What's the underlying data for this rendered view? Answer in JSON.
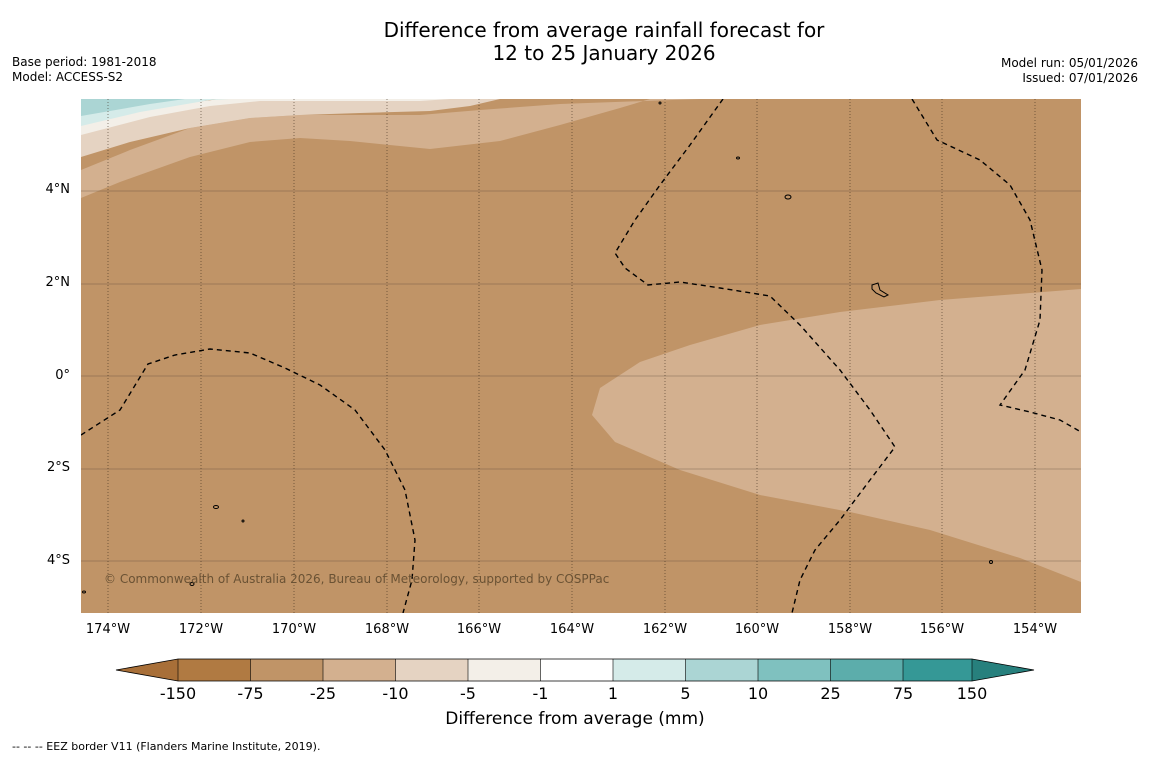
{
  "title_line1": "Difference from average rainfall forecast for",
  "title_line2": "12 to 25 January 2026",
  "base_period": "Base period: 1981-2018",
  "model": "Model: ACCESS-S2",
  "model_run": "Model run: 05/01/2026",
  "issued": "Issued: 07/01/2026",
  "lat_labels": [
    "4°N",
    "2°N",
    "0°",
    "2°S",
    "4°S"
  ],
  "lon_labels": [
    "174°W",
    "172°W",
    "170°W",
    "168°W",
    "166°W",
    "164°W",
    "162°W",
    "160°W",
    "158°W",
    "156°W",
    "154°W"
  ],
  "copyright": "© Commonwealth of Australia 2026, Bureau of Meteorology, supported by COSPPac",
  "colorbar": {
    "ticks": [
      "-150",
      "-75",
      "-25",
      "-10",
      "-5",
      "-1",
      "1",
      "5",
      "10",
      "25",
      "75",
      "150"
    ],
    "colors": [
      "#a86f38",
      "#b07a42",
      "#c09467",
      "#d3b08f",
      "#e5d3c2",
      "#f3efe8",
      "#ffffff",
      "#d5ebe9",
      "#abd5d4",
      "#7fc1bf",
      "#5cadab",
      "#359896",
      "#27807d"
    ],
    "title": "Difference from average (mm)"
  },
  "footnote": "--  --  -- EEZ border V11 (Flanders Marine Institute, 2019).",
  "map_colors": {
    "base": "#c09467",
    "light_anomaly": "#d3b08f",
    "faint_anomaly": "#e5d3c2",
    "near_zero": "#f3efe8",
    "teal_light": "#d5ebe9",
    "teal_mid": "#abd5d4"
  }
}
